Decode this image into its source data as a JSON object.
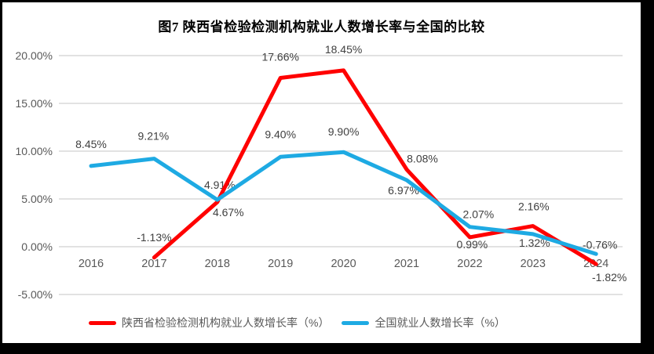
{
  "chart_data": {
    "type": "line",
    "title": "图7 陕西省检验检测机构就业人数增长率与全国的比较",
    "categories": [
      "2016",
      "2017",
      "2018",
      "2019",
      "2020",
      "2021",
      "2022",
      "2023",
      "2024"
    ],
    "y_axis": {
      "ticks": [
        {
          "label": "20.00%",
          "value": 20
        },
        {
          "label": "15.00%",
          "value": 15
        },
        {
          "label": "10.00%",
          "value": 10
        },
        {
          "label": "5.00%",
          "value": 5
        },
        {
          "label": "0.00%",
          "value": 0
        },
        {
          "label": "-5.00%",
          "value": -5
        }
      ],
      "min": -5,
      "max": 20
    },
    "series": [
      {
        "name": "陕西省检验检测机构就业人数增长率（%）",
        "color": "#FF0000",
        "values": [
          null,
          -1.13,
          4.67,
          17.66,
          18.45,
          8.08,
          0.99,
          2.16,
          -1.82
        ],
        "data_labels": [
          "",
          "-1.13%",
          "4.67%",
          "17.66%",
          "18.45%",
          "8.08%",
          "0.99%",
          "2.16%",
          "-1.82%"
        ],
        "label_offsets": [
          null,
          [
            0,
            -26
          ],
          [
            14,
            13
          ],
          [
            0,
            -27
          ],
          [
            0,
            -27
          ],
          [
            20,
            -14
          ],
          [
            3,
            9
          ],
          [
            1,
            -25
          ],
          [
            17,
            17
          ]
        ]
      },
      {
        "name": "全国就业人数增长率（%）",
        "color": "#1EAAE3",
        "values": [
          8.45,
          9.21,
          4.91,
          9.4,
          9.9,
          6.97,
          2.07,
          1.32,
          -0.76
        ],
        "data_labels": [
          "8.45%",
          "9.21%",
          "4.91%",
          "9.40%",
          "9.90%",
          "6.97%",
          "2.07%",
          "1.32%",
          "-0.76%"
        ],
        "label_offsets": [
          [
            0,
            -28
          ],
          [
            -1,
            -29
          ],
          [
            3,
            -19
          ],
          [
            0,
            -29
          ],
          [
            0,
            -26
          ],
          [
            -4,
            13
          ],
          [
            11,
            -16
          ],
          [
            2,
            11
          ],
          [
            5,
            -12
          ]
        ]
      }
    ],
    "grid": true,
    "legend_position": "bottom",
    "colors": {
      "grid": "#D9D9D9",
      "axis_text": "#595959",
      "data_label_text": "#404040",
      "title_text": "#000000",
      "series_red": "#FF0000",
      "series_blue": "#1EAAE3",
      "frame": "#000000",
      "background": "#FFFFFF"
    }
  }
}
